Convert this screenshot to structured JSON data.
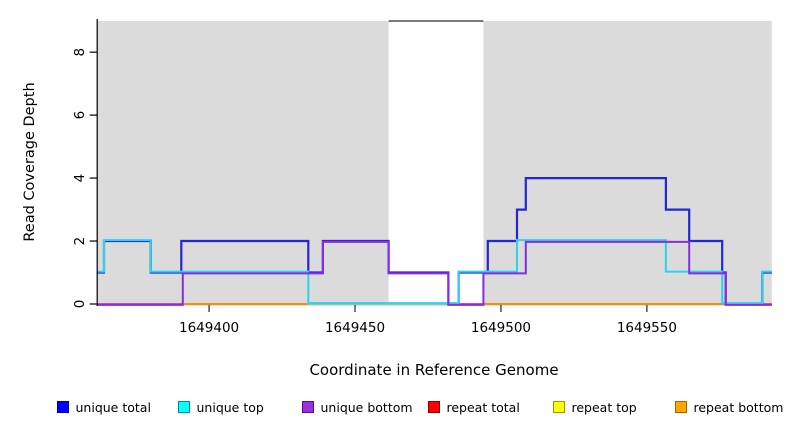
{
  "y_axis": {
    "label": "Read Coverage Depth",
    "tick_labels": [
      "0",
      "2",
      "4",
      "6",
      "8"
    ],
    "tick_values": [
      0,
      2,
      4,
      6,
      8
    ]
  },
  "x_axis": {
    "label": "Coordinate in Reference Genome",
    "tick_labels": [
      "1649400",
      "1649450",
      "1649500",
      "1649550"
    ],
    "tick_values": [
      1649400,
      1649450,
      1649500,
      1649550
    ]
  },
  "legend": {
    "items": [
      {
        "label": "unique total",
        "fill": "#0000FF",
        "border": "#0000A0"
      },
      {
        "label": "unique top",
        "fill": "#00FFFF",
        "border": "#008B8B"
      },
      {
        "label": "unique bottom",
        "fill": "#9B30D9",
        "border": "#5B0A91"
      },
      {
        "label": "repeat total",
        "fill": "#FF0000",
        "border": "#8B0000"
      },
      {
        "label": "repeat top",
        "fill": "#FFFF00",
        "border": "#999900"
      },
      {
        "label": "repeat bottom",
        "fill": "#FFA500",
        "border": "#B06000"
      }
    ]
  },
  "chart_data": {
    "type": "line",
    "style": "step",
    "title": "",
    "xlabel": "Coordinate in Reference Genome",
    "ylabel": "Read Coverage Depth",
    "xlim": [
      1649361.5,
      1649592.8
    ],
    "ylim": [
      0,
      9
    ],
    "grid": false,
    "legend_position": "bottom",
    "background_color": "#DBDBDB",
    "shaded_regions": [
      {
        "x0": 1649361.5,
        "x1": 1649461.5
      },
      {
        "x0": 1649494.0,
        "x1": 1649592.8
      }
    ],
    "gap_top_line": {
      "x0": 1649461.5,
      "x1": 1649494.0,
      "depth": 9,
      "color": "#7A7A7A"
    },
    "series": [
      {
        "name": "unique total",
        "color": "#2525D2",
        "width": 2.2,
        "dy": 0,
        "points": [
          [
            1649361.5,
            1
          ],
          [
            1649364,
            2
          ],
          [
            1649380,
            1
          ],
          [
            1649390.5,
            2
          ],
          [
            1649434,
            1
          ],
          [
            1649439,
            2
          ],
          [
            1649461.5,
            1
          ],
          [
            1649482,
            0
          ],
          [
            1649485.5,
            1
          ],
          [
            1649495.5,
            2
          ],
          [
            1649505.5,
            3
          ],
          [
            1649508.5,
            4
          ],
          [
            1649556.5,
            3
          ],
          [
            1649564.5,
            2
          ],
          [
            1649575.8,
            1
          ],
          [
            1649577,
            0
          ],
          [
            1649589.5,
            1
          ],
          [
            1649592.8,
            1
          ]
        ]
      },
      {
        "name": "unique top",
        "color": "#2BD3EE",
        "width": 2.0,
        "dy": -0.9,
        "points": [
          [
            1649361.5,
            1
          ],
          [
            1649364,
            2
          ],
          [
            1649380,
            1
          ],
          [
            1649434,
            0
          ],
          [
            1649485.5,
            1
          ],
          [
            1649505.5,
            2
          ],
          [
            1649556.5,
            1
          ],
          [
            1649575.8,
            0
          ],
          [
            1649589.5,
            1
          ],
          [
            1649592.8,
            1
          ]
        ]
      },
      {
        "name": "unique bottom",
        "color": "#8A2BE2",
        "width": 2.0,
        "dy": 0.9,
        "points": [
          [
            1649361.5,
            0
          ],
          [
            1649391,
            1
          ],
          [
            1649439,
            2
          ],
          [
            1649461.5,
            1
          ],
          [
            1649482,
            0
          ],
          [
            1649494,
            1
          ],
          [
            1649508.5,
            2
          ],
          [
            1649564.5,
            1
          ],
          [
            1649577,
            0
          ],
          [
            1649592.8,
            0
          ]
        ]
      },
      {
        "name": "repeat total",
        "color": "#D03030",
        "width": 1.3,
        "dy": 0.4,
        "points": [
          [
            1649361.5,
            0
          ],
          [
            1649592.8,
            0
          ]
        ]
      },
      {
        "name": "repeat top",
        "color": "#E6E600",
        "width": 1.3,
        "dy": 0.1,
        "points": [
          [
            1649361.5,
            0
          ],
          [
            1649592.8,
            0
          ]
        ]
      },
      {
        "name": "repeat bottom",
        "color": "#FF8C00",
        "width": 1.5,
        "dy": 0,
        "points": [
          [
            1649361.5,
            0
          ],
          [
            1649592.8,
            0
          ]
        ]
      }
    ],
    "baseline_segments": [
      {
        "x0": 1649361.5,
        "x1": 1649391.0,
        "color": "#C9559E"
      },
      {
        "x0": 1649391.0,
        "x1": 1649434.0,
        "color": "#FF8C00"
      },
      {
        "x0": 1649434.0,
        "x1": 1649482.0,
        "color": "#8FCE8F"
      },
      {
        "x0": 1649485.5,
        "x1": 1649494.0,
        "color": "#E0527E"
      },
      {
        "x0": 1649494.0,
        "x1": 1649575.8,
        "color": "#FF8C00"
      },
      {
        "x0": 1649589.5,
        "x1": 1649592.8,
        "color": "#E0527E"
      }
    ]
  }
}
